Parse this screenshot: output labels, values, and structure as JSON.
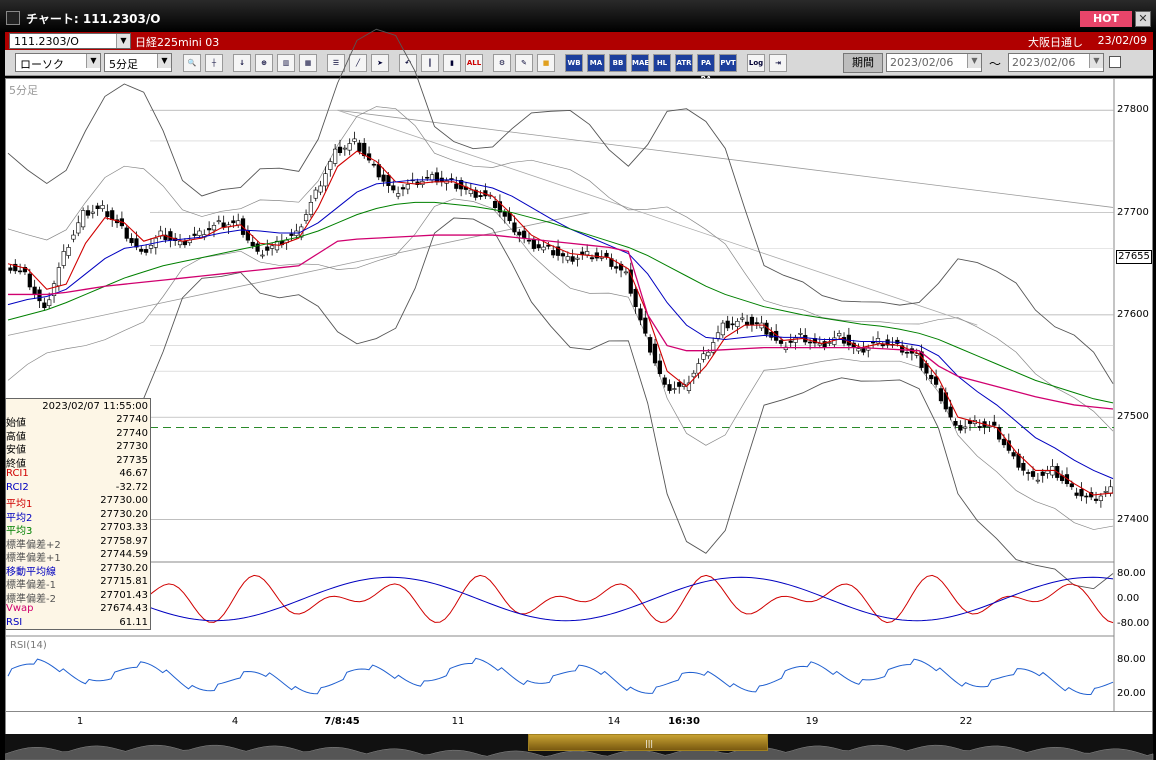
{
  "window": {
    "title": "チャート: 111.2303/O",
    "hot_label": "HOT",
    "close_label": "✕"
  },
  "info": {
    "symbol": "111.2303/O",
    "instrument_name": "日経225mini 03",
    "market": "大阪日通し",
    "date": "23/02/09"
  },
  "toolbar": {
    "chart_type": "ローソク",
    "interval": "5分足",
    "icons": [
      "search-icon",
      "crosshair-icon",
      "arrow-icon",
      "zoom-icon",
      "bars-icon",
      "grid-icon",
      "list-icon",
      "draw-line-icon",
      "cursor-icon",
      "undo-icon",
      "bar-mode-icon",
      "candle-mode-icon",
      "all-icon",
      "settings-icon",
      "pen-icon",
      "color-icon",
      "wb-icon",
      "ma-icon",
      "bb-icon",
      "mae-icon",
      "hl-icon",
      "atr-icon",
      "para-icon",
      "pvt-icon",
      "log-icon",
      "exit-icon"
    ],
    "button_labels": {
      "all": "ALL",
      "wb": "WB",
      "ma": "MA",
      "bb": "BB",
      "mae": "MAE",
      "hl": "HL",
      "atr": "ATR",
      "para": "PA RA",
      "pvt": "PVT",
      "log": "Log"
    },
    "period_label": "期間",
    "date_from": "2023/02/06",
    "date_to": "2023/02/06",
    "tilde": "～"
  },
  "chart": {
    "timeframe_label": "5分足",
    "current_price": "27655",
    "y_ticks": [
      "27800",
      "27700",
      "27600",
      "27500",
      "27400"
    ],
    "x_ticks": [
      "1",
      "4",
      "7/8:45",
      "11",
      "14",
      "16:30",
      "19",
      "22"
    ],
    "x_bold": [
      false,
      false,
      true,
      false,
      false,
      true,
      false,
      false
    ],
    "osc_ticks": [
      "80.00",
      "0.00",
      "-80.00"
    ],
    "rsi_label": "RSI(14)",
    "rsi_ticks": [
      "80.00",
      "20.00"
    ],
    "colors": {
      "rci1": "#d00000",
      "rci2": "#0000c0",
      "ma1": "#d00000",
      "ma2": "#0000c0",
      "ma3": "#008000",
      "vwap": "#d0006f",
      "rsi": "#2060d0",
      "bands": "#555555"
    }
  },
  "chart_data": {
    "type": "line",
    "title": "",
    "ylim": [
      27380,
      27810
    ],
    "series": [
      {
        "name": "終値",
        "x": [
          0,
          10,
          20,
          30,
          40,
          50,
          60,
          70,
          80,
          90,
          100,
          110,
          120,
          130,
          140,
          150,
          160,
          170,
          180,
          190,
          200,
          210,
          220,
          230,
          240,
          250,
          260,
          270,
          280,
          290,
          300,
          310,
          320,
          330,
          340,
          350,
          360,
          370,
          380,
          390,
          400,
          410,
          420,
          430,
          440,
          450,
          460,
          470,
          480,
          490,
          500,
          510,
          520,
          530,
          540,
          550,
          560,
          570
        ],
        "values": [
          27650,
          27640,
          27605,
          27660,
          27700,
          27705,
          27685,
          27660,
          27680,
          27670,
          27680,
          27690,
          27690,
          27660,
          27670,
          27680,
          27720,
          27760,
          27770,
          27745,
          27720,
          27730,
          27735,
          27730,
          27720,
          27715,
          27690,
          27670,
          27665,
          27655,
          27660,
          27655,
          27640,
          27580,
          27530,
          27530,
          27560,
          27590,
          27595,
          27590,
          27570,
          27580,
          27570,
          27580,
          27565,
          27575,
          27570,
          27560,
          27530,
          27490,
          27495,
          27490,
          27460,
          27440,
          27450,
          27430,
          27420,
          27430
        ]
      },
      {
        "name": "平均1",
        "values": [
          27650,
          27645,
          27625,
          27630,
          27670,
          27695,
          27690,
          27672,
          27678,
          27672,
          27675,
          27685,
          27688,
          27670,
          27668,
          27675,
          27705,
          27745,
          27760,
          27750,
          27730,
          27728,
          27730,
          27730,
          27722,
          27716,
          27698,
          27678,
          27668,
          27660,
          27658,
          27656,
          27645,
          27600,
          27545,
          27530,
          27550,
          27578,
          27590,
          27590,
          27575,
          27577,
          27572,
          27577,
          27568,
          27572,
          27570,
          27562,
          27538,
          27500,
          27495,
          27490,
          27466,
          27448,
          27448,
          27435,
          27424,
          27426
        ]
      },
      {
        "name": "平均2",
        "values": [
          27610,
          27615,
          27618,
          27625,
          27640,
          27655,
          27665,
          27668,
          27672,
          27674,
          27676,
          27680,
          27683,
          27682,
          27680,
          27680,
          27690,
          27705,
          27720,
          27728,
          27730,
          27732,
          27732,
          27732,
          27728,
          27724,
          27716,
          27705,
          27694,
          27684,
          27676,
          27668,
          27660,
          27640,
          27612,
          27590,
          27578,
          27576,
          27578,
          27580,
          27578,
          27578,
          27576,
          27576,
          27574,
          27574,
          27573,
          27570,
          27560,
          27540,
          27525,
          27512,
          27496,
          27480,
          27470,
          27458,
          27448,
          27440
        ]
      },
      {
        "name": "平均3",
        "values": [
          27595,
          27600,
          27605,
          27612,
          27620,
          27628,
          27636,
          27642,
          27648,
          27652,
          27656,
          27660,
          27664,
          27668,
          27672,
          27676,
          27682,
          27690,
          27698,
          27704,
          27708,
          27710,
          27710,
          27708,
          27706,
          27703,
          27700,
          27695,
          27690,
          27684,
          27678,
          27672,
          27666,
          27658,
          27648,
          27638,
          27628,
          27620,
          27614,
          27608,
          27604,
          27600,
          27597,
          27594,
          27591,
          27589,
          27586,
          27582,
          27576,
          27568,
          27560,
          27552,
          27544,
          27536,
          27530,
          27524,
          27518,
          27514
        ]
      },
      {
        "name": "Vwap",
        "values": [
          27620,
          27620,
          27620,
          27622,
          27625,
          27628,
          27630,
          27632,
          27634,
          27636,
          27638,
          27640,
          27642,
          27644,
          27646,
          27648,
          27660,
          27672,
          27674,
          27675,
          27676,
          27677,
          27678,
          27678,
          27678,
          27678,
          27676,
          27674,
          27672,
          27670,
          27668,
          27666,
          27662,
          27600,
          27570,
          27565,
          27565,
          27566,
          27567,
          27568,
          27568,
          27568,
          27568,
          27568,
          27568,
          27567,
          27566,
          27565,
          27550,
          27540,
          27535,
          27530,
          27525,
          27520,
          27516,
          27512,
          27510,
          27508
        ]
      }
    ]
  },
  "data_box": {
    "datetime": "2023/02/07  11:55:00",
    "rows": [
      {
        "label": "始値",
        "value": "27740",
        "color": "#000000"
      },
      {
        "label": "高値",
        "value": "27740",
        "color": "#000000"
      },
      {
        "label": "安値",
        "value": "27730",
        "color": "#000000"
      },
      {
        "label": "終値",
        "value": "27735",
        "color": "#000000"
      },
      {
        "label": "RCI1",
        "value": "46.67",
        "color": "#d00000"
      },
      {
        "label": "RCI2",
        "value": "-32.72",
        "color": "#0000c0"
      },
      {
        "label": "平均1",
        "value": "27730.00",
        "color": "#d00000"
      },
      {
        "label": "平均2",
        "value": "27730.20",
        "color": "#0000c0"
      },
      {
        "label": "平均3",
        "value": "27703.33",
        "color": "#008000"
      },
      {
        "label": "標準偏差+2",
        "value": "27758.97",
        "color": "#555555"
      },
      {
        "label": "標準偏差+1",
        "value": "27744.59",
        "color": "#555555"
      },
      {
        "label": "移動平均線",
        "value": "27730.20",
        "color": "#0000c0"
      },
      {
        "label": "標準偏差-1",
        "value": "27715.81",
        "color": "#555555"
      },
      {
        "label": "標準偏差-2",
        "value": "27701.43",
        "color": "#555555"
      },
      {
        "label": "Vwap",
        "value": "27674.43",
        "color": "#d0006f"
      },
      {
        "label": "RSI",
        "value": "61.11",
        "color": "#0000c0"
      }
    ]
  }
}
